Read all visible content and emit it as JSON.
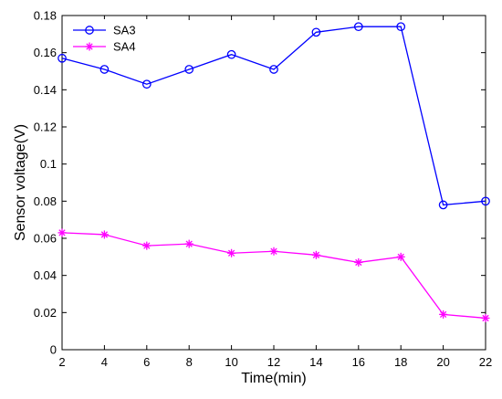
{
  "chart_data": {
    "type": "line",
    "title": "",
    "xlabel": "Time(min)",
    "ylabel": "Sensor voltage(V)",
    "xlim": [
      2,
      22
    ],
    "ylim": [
      0,
      0.18
    ],
    "x_ticks": [
      "2",
      "4",
      "6",
      "8",
      "10",
      "12",
      "14",
      "16",
      "18",
      "20",
      "22"
    ],
    "y_ticks": [
      "0",
      "0.02",
      "0.04",
      "0.06",
      "0.08",
      "0.1",
      "0.12",
      "0.14",
      "0.16",
      "0.18"
    ],
    "x": [
      2,
      4,
      6,
      8,
      10,
      12,
      14,
      16,
      18,
      20,
      22
    ],
    "grid": false,
    "legend_position": "top-left",
    "series": [
      {
        "name": "SA3",
        "values": [
          0.157,
          0.151,
          0.143,
          0.151,
          0.159,
          0.151,
          0.171,
          0.174,
          0.174,
          0.078,
          0.08
        ],
        "color": "#0000ff",
        "marker": "circle"
      },
      {
        "name": "SA4",
        "values": [
          0.063,
          0.062,
          0.056,
          0.057,
          0.052,
          0.053,
          0.051,
          0.047,
          0.05,
          0.019,
          0.017
        ],
        "color": "#ff00ff",
        "marker": "asterisk"
      }
    ]
  }
}
